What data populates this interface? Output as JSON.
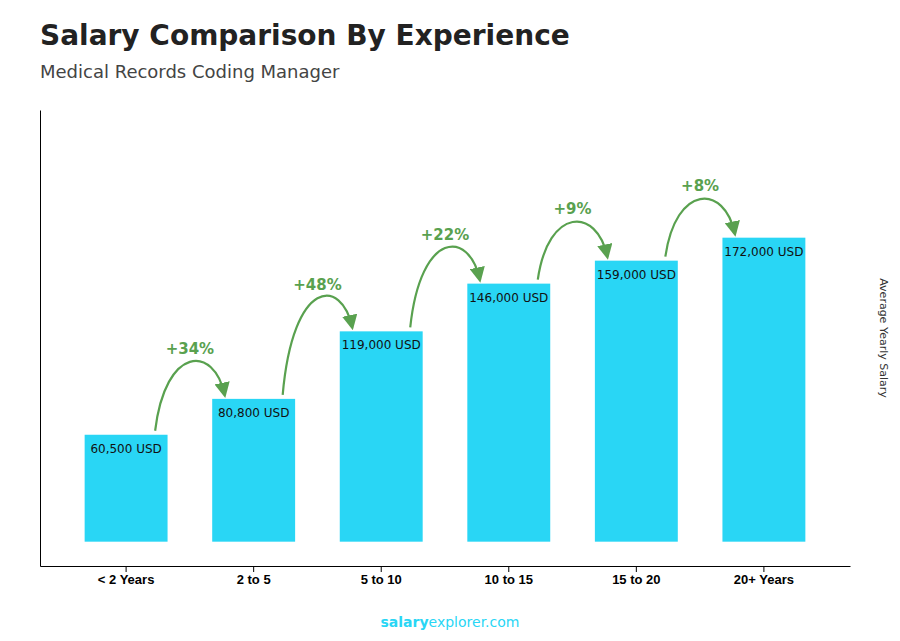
{
  "chart_data": {
    "type": "bar",
    "title": "Salary Comparison By Experience",
    "subtitle": "Medical Records Coding Manager",
    "ylabel": "Average Yearly Salary",
    "categories": [
      "< 2 Years",
      "2 to 5",
      "5 to 10",
      "10 to 15",
      "15 to 20",
      "20+ Years"
    ],
    "values": [
      60500,
      80800,
      119000,
      146000,
      159000,
      172000
    ],
    "value_labels": [
      "60,500 USD",
      "80,800 USD",
      "119,000 USD",
      "146,000 USD",
      "159,000 USD",
      "172,000 USD"
    ],
    "data_labels": true,
    "annotations": [
      "+34%",
      "+48%",
      "+22%",
      "+9%",
      "+8%"
    ],
    "footer": [
      "salary",
      "explorer.com"
    ],
    "color": "#29d6f5",
    "ylim": [
      -13760,
      244240
    ],
    "tick_labels": "x",
    "grid": false
  }
}
